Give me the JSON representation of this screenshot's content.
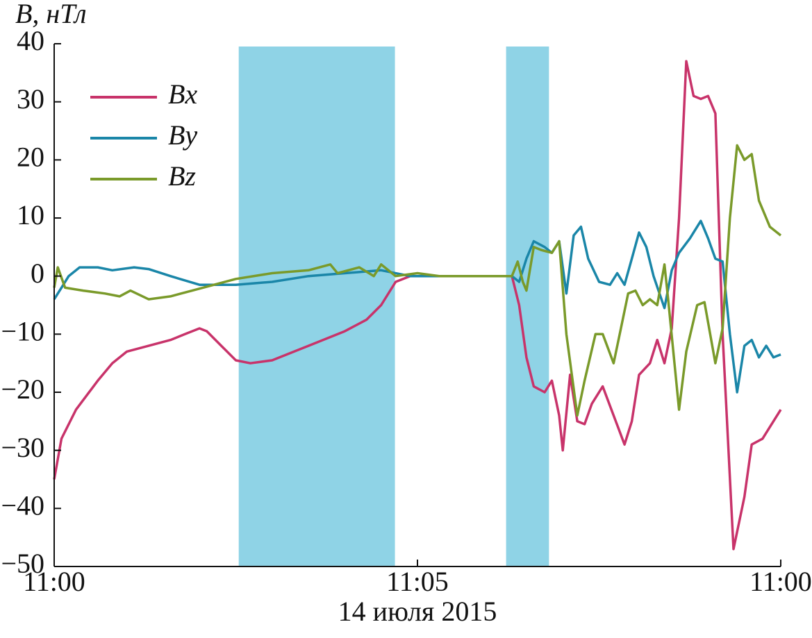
{
  "chart_data": {
    "type": "line",
    "ylabel": "B, нТл",
    "xlabel": "14 июля 2015",
    "xlim": [
      0,
      10
    ],
    "xticks": [
      {
        "value": 0,
        "label": "11:00"
      },
      {
        "value": 5,
        "label": "11:05"
      },
      {
        "value": 10,
        "label": "11:00"
      }
    ],
    "ylim": [
      -50,
      40
    ],
    "yticks": [
      40,
      30,
      20,
      10,
      0,
      {
        "value": -10,
        "label": "−10"
      },
      {
        "value": -20,
        "label": "−20"
      },
      {
        "value": -30,
        "label": "−30"
      },
      {
        "value": -40,
        "label": "−40"
      },
      {
        "value": -50,
        "label": "−50"
      }
    ],
    "shaded_spans": [
      [
        2.54,
        4.69
      ],
      [
        6.22,
        6.81
      ]
    ],
    "shade_color": "#8fd3e6",
    "legend": "upper left",
    "series": [
      {
        "name": "Bx",
        "color": "#c8336a",
        "x": [
          0,
          0.1,
          0.3,
          0.6,
          0.8,
          1.0,
          1.3,
          1.6,
          1.8,
          2.0,
          2.1,
          2.3,
          2.5,
          2.7,
          3.0,
          3.5,
          4.0,
          4.3,
          4.5,
          4.7,
          4.9,
          5.2,
          5.5,
          5.8,
          6.1,
          6.3,
          6.4,
          6.5,
          6.6,
          6.75,
          6.85,
          6.95,
          7.0,
          7.1,
          7.2,
          7.3,
          7.4,
          7.55,
          7.7,
          7.85,
          7.95,
          8.05,
          8.2,
          8.3,
          8.4,
          8.5,
          8.6,
          8.7,
          8.8,
          8.9,
          9.0,
          9.1,
          9.2,
          9.35,
          9.5,
          9.6,
          9.75,
          9.9,
          10
        ],
        "values": [
          -35,
          -28,
          -23,
          -18,
          -15,
          -13,
          -12,
          -11,
          -10,
          -9,
          -9.5,
          -12,
          -14.5,
          -15,
          -14.5,
          -12,
          -9.5,
          -7.5,
          -5,
          -1,
          0,
          0,
          0,
          0,
          0,
          0,
          -5,
          -14,
          -19,
          -20,
          -18,
          -24,
          -30,
          -17,
          -25,
          -25.5,
          -22,
          -19,
          -24,
          -29,
          -25,
          -17,
          -15,
          -11,
          -15,
          -9,
          10,
          37,
          31,
          30.5,
          31,
          28,
          -10,
          -47,
          -38,
          -29,
          -28,
          -25,
          -23
        ]
      },
      {
        "name": "By",
        "color": "#1a86a8",
        "x": [
          0,
          0.1,
          0.2,
          0.35,
          0.6,
          0.8,
          1.1,
          1.3,
          1.6,
          2.0,
          2.5,
          3.0,
          3.5,
          4.0,
          4.5,
          4.9,
          5.5,
          6.0,
          6.3,
          6.4,
          6.5,
          6.6,
          6.75,
          6.85,
          6.95,
          7.05,
          7.15,
          7.25,
          7.35,
          7.5,
          7.65,
          7.75,
          7.85,
          7.95,
          8.05,
          8.15,
          8.25,
          8.4,
          8.5,
          8.6,
          8.75,
          8.9,
          9.0,
          9.1,
          9.2,
          9.3,
          9.4,
          9.5,
          9.6,
          9.7,
          9.8,
          9.9,
          10
        ],
        "values": [
          -4,
          -2,
          0,
          1.5,
          1.5,
          1,
          1.5,
          1.2,
          0,
          -1.5,
          -1.5,
          -1,
          0,
          0.5,
          1,
          0,
          0,
          0,
          0,
          -1,
          3,
          6,
          5,
          4,
          6,
          -3,
          7,
          8.5,
          3,
          -1,
          -1.5,
          0.5,
          -1.5,
          3,
          7.5,
          5,
          0,
          -5.5,
          1,
          4,
          6.5,
          9.5,
          6.5,
          3,
          2.5,
          -10,
          -20,
          -12,
          -11,
          -14,
          -12,
          -14,
          -13.5
        ]
      },
      {
        "name": "Bz",
        "color": "#7a9a2a",
        "x": [
          0,
          0.05,
          0.15,
          0.4,
          0.7,
          0.9,
          1.05,
          1.3,
          1.6,
          1.9,
          2.2,
          2.5,
          3.0,
          3.5,
          3.8,
          3.9,
          4.2,
          4.4,
          4.5,
          4.7,
          5.0,
          5.3,
          5.6,
          6.0,
          6.3,
          6.38,
          6.45,
          6.5,
          6.6,
          6.7,
          6.85,
          6.95,
          7.05,
          7.2,
          7.3,
          7.45,
          7.55,
          7.7,
          7.8,
          7.9,
          8.0,
          8.1,
          8.2,
          8.3,
          8.4,
          8.45,
          8.6,
          8.7,
          8.85,
          8.95,
          9.1,
          9.2,
          9.3,
          9.4,
          9.5,
          9.6,
          9.7,
          9.85,
          10
        ],
        "values": [
          -2,
          1.5,
          -2,
          -2.5,
          -3,
          -3.5,
          -2.5,
          -4,
          -3.5,
          -2.5,
          -1.5,
          -0.5,
          0.5,
          1,
          2,
          0.5,
          1.5,
          0,
          2,
          0,
          0.5,
          0,
          0,
          0,
          0,
          2.5,
          -1,
          -2.5,
          5,
          4.5,
          4,
          6,
          -10,
          -24,
          -18,
          -10,
          -10,
          -15,
          -9,
          -3,
          -2.5,
          -5,
          -4,
          -5,
          2,
          -4,
          -23,
          -13,
          -5,
          -4.5,
          -15,
          -9,
          10,
          22.5,
          20,
          21,
          13,
          8.5,
          7
        ]
      }
    ]
  }
}
